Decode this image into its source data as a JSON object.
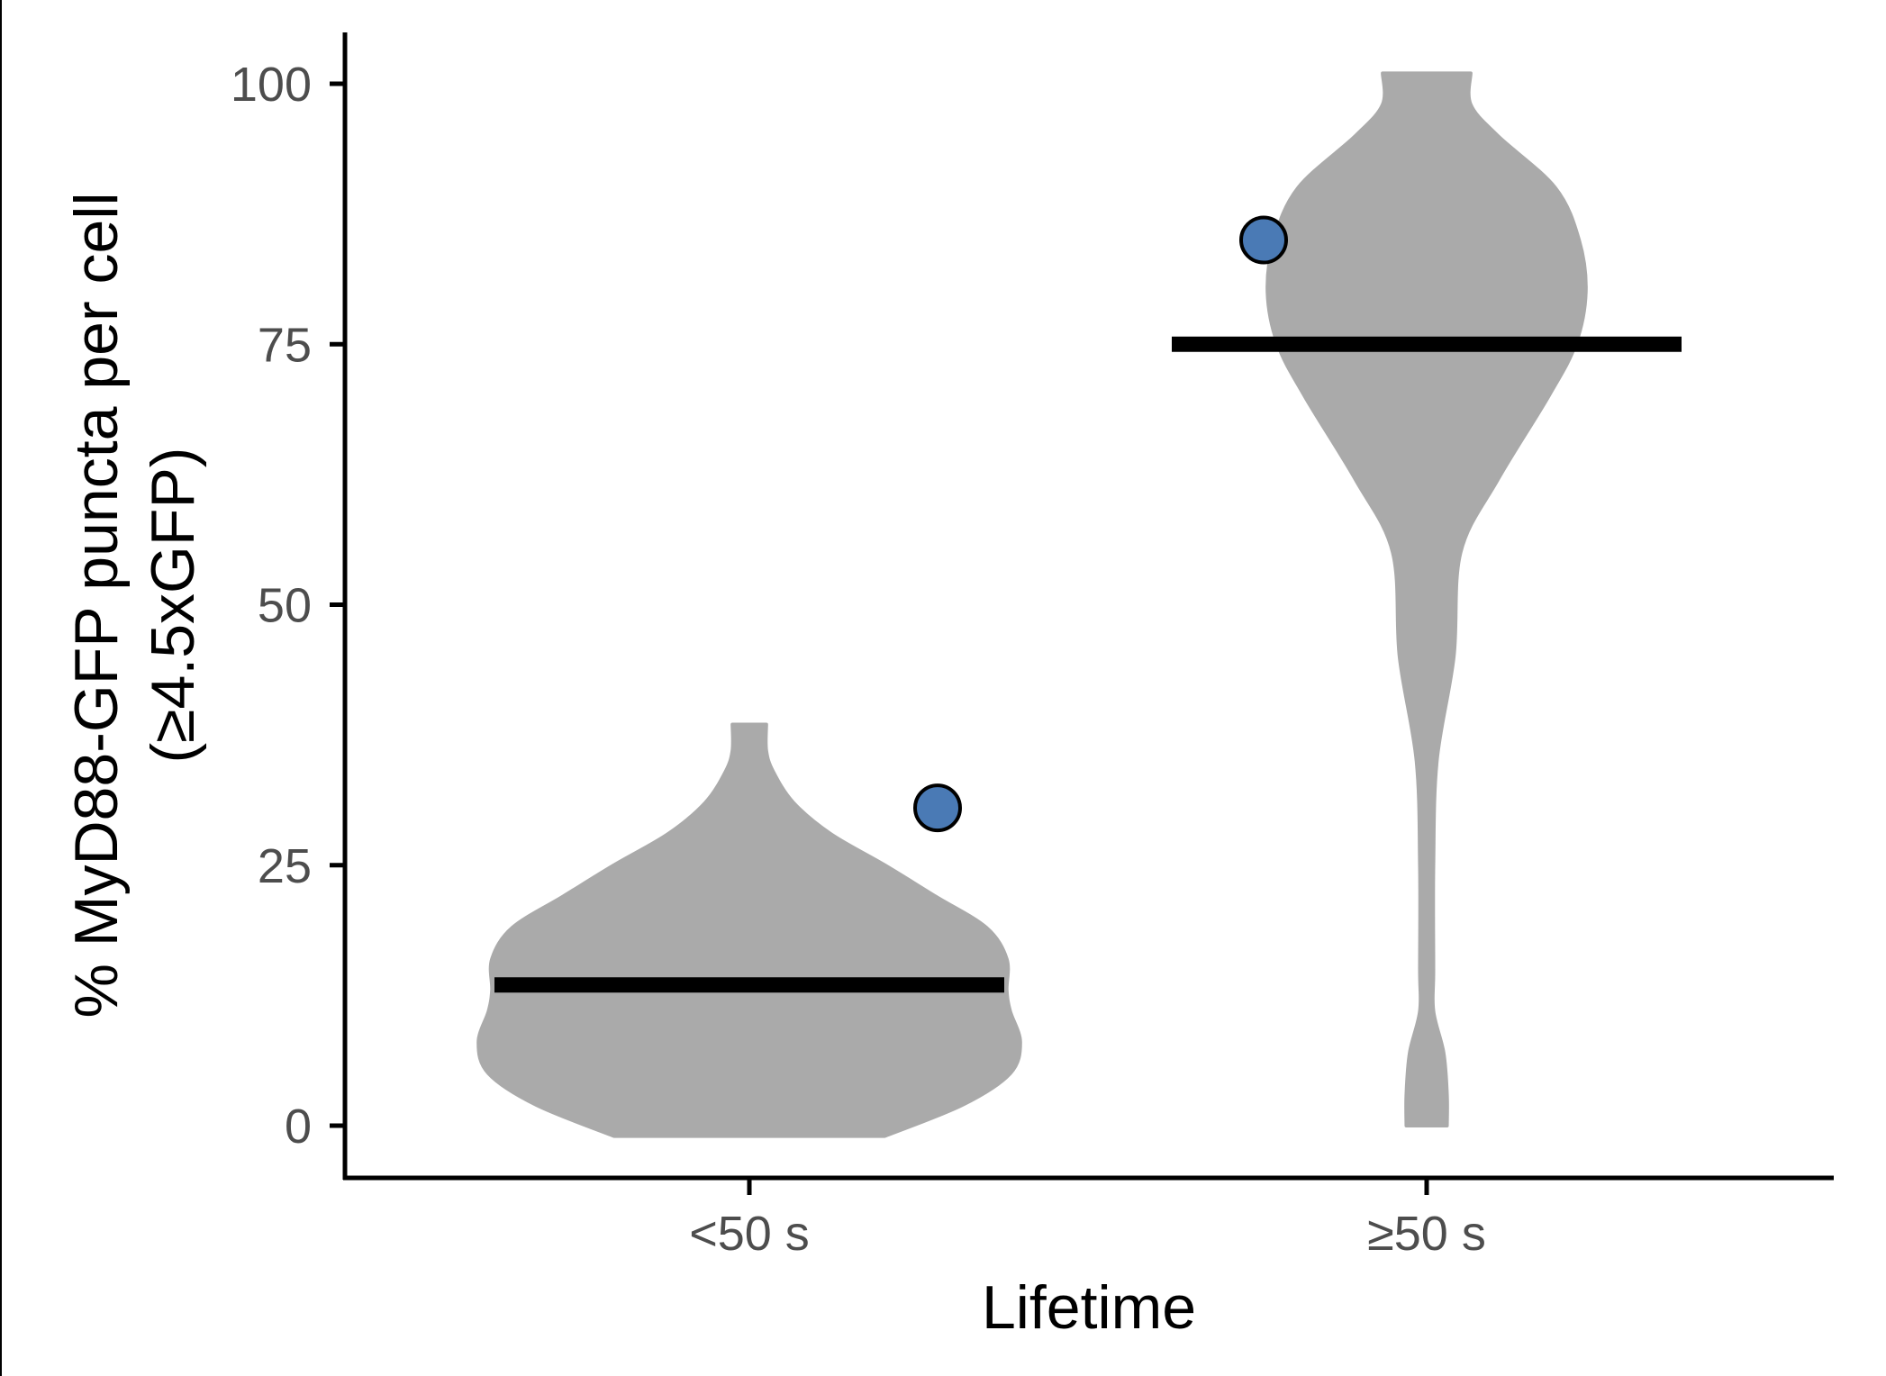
{
  "chart_data": {
    "type": "violin",
    "title": "",
    "xlabel": "Lifetime",
    "ylabel_lines": [
      "% MyD88-GFP puncta per cell",
      "(≥4.5xGFP)"
    ],
    "categories": [
      "<50 s",
      "≥50 s"
    ],
    "ylim": [
      -10,
      105
    ],
    "yticks": [
      0,
      25,
      50,
      75,
      100
    ],
    "grid": false,
    "legend": "none",
    "violin_fill": "#aaaaaa",
    "point_fill": "#4a7ab5",
    "point_stroke": "#000000",
    "median_color": "#000000",
    "groups": [
      {
        "category": "<50 s",
        "median": 13.5,
        "point": 30.5,
        "violin_range": [
          -1,
          38.5
        ],
        "density_profile": [
          [
            -1,
            0.4
          ],
          [
            2,
            0.63
          ],
          [
            5,
            0.77
          ],
          [
            8,
            0.8
          ],
          [
            11,
            0.77
          ],
          [
            13,
            0.76
          ],
          [
            16,
            0.76
          ],
          [
            19,
            0.7
          ],
          [
            22,
            0.55
          ],
          [
            25,
            0.4
          ],
          [
            28,
            0.24
          ],
          [
            31,
            0.13
          ],
          [
            34,
            0.07
          ],
          [
            36,
            0.05
          ],
          [
            38.5,
            0.05
          ]
        ]
      },
      {
        "category": "≥50 s",
        "median": 75,
        "point": 85,
        "violin_range": [
          0,
          101
        ],
        "density_profile": [
          [
            0,
            0.06
          ],
          [
            3,
            0.06
          ],
          [
            7,
            0.05
          ],
          [
            11,
            0.02
          ],
          [
            15,
            0.02
          ],
          [
            25,
            0.02
          ],
          [
            35,
            0.03
          ],
          [
            45,
            0.08
          ],
          [
            55,
            0.1
          ],
          [
            62,
            0.21
          ],
          [
            70,
            0.36
          ],
          [
            75,
            0.44
          ],
          [
            80,
            0.47
          ],
          [
            85,
            0.45
          ],
          [
            90,
            0.38
          ],
          [
            95,
            0.21
          ],
          [
            98,
            0.13
          ],
          [
            101,
            0.13
          ]
        ]
      }
    ]
  }
}
